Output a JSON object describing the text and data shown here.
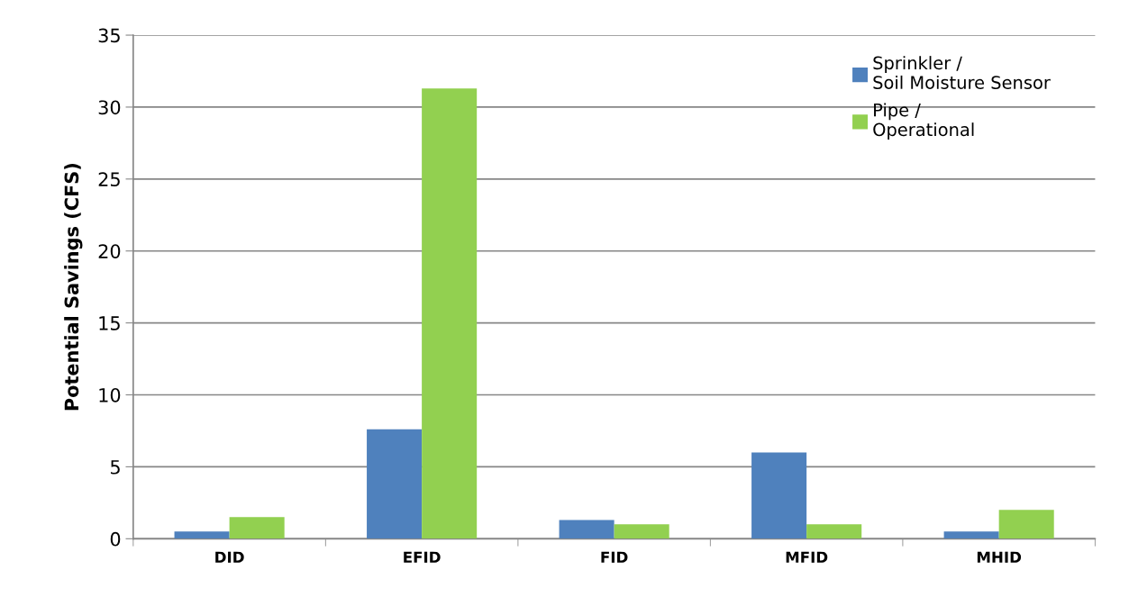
{
  "chart_data": {
    "type": "bar",
    "ylabel": "Potential Savings (CFS)",
    "categories": [
      "DID",
      "EFID",
      "FID",
      "MFID",
      "MHID"
    ],
    "series": [
      {
        "name": "Sprinkler /\nSoil Moisture Sensor",
        "color": "#4f81bd",
        "values": [
          0.5,
          7.6,
          1.3,
          6.0,
          0.5
        ]
      },
      {
        "name": "Pipe /\nOperational",
        "color": "#92d050",
        "values": [
          1.5,
          31.3,
          1.0,
          1.0,
          2.0
        ]
      }
    ],
    "ylim": [
      0,
      35
    ],
    "yticks": [
      0,
      5,
      10,
      15,
      20,
      25,
      30,
      35
    ],
    "grid": "y",
    "legend": "top right"
  }
}
